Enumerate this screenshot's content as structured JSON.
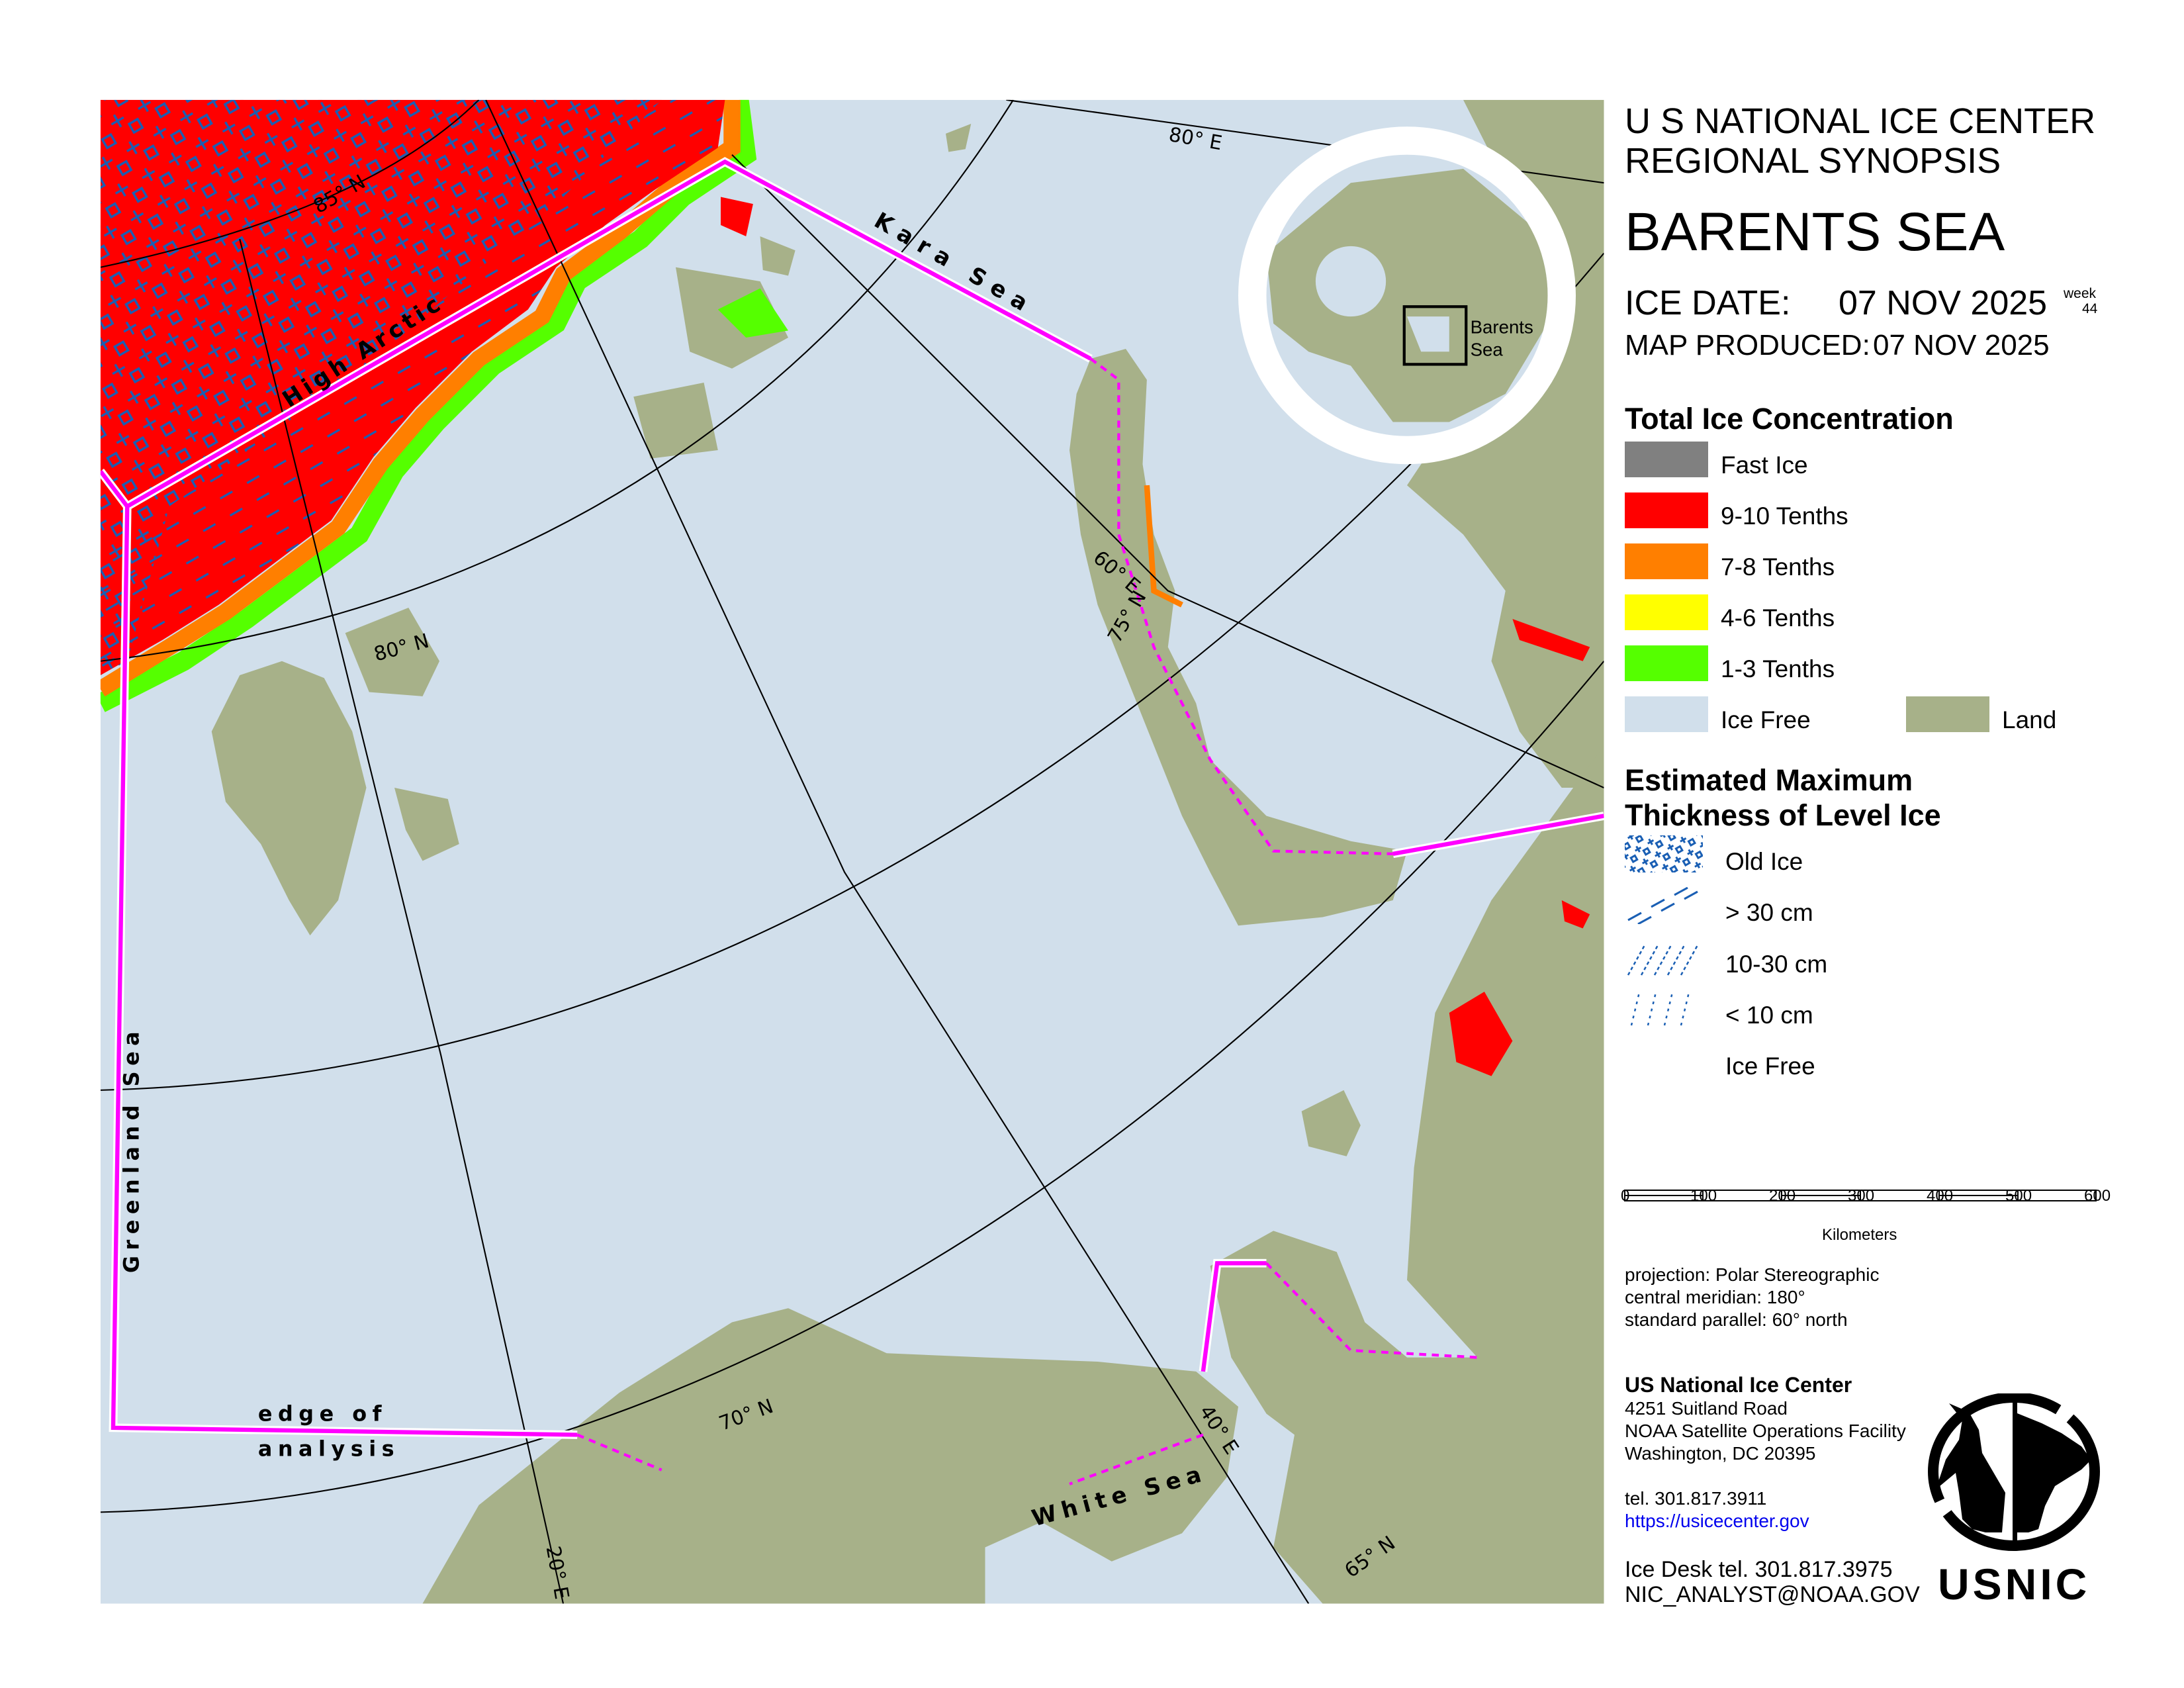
{
  "header": {
    "line1": "U S NATIONAL ICE CENTER",
    "line2": "REGIONAL SYNOPSIS",
    "region": "BARENTS SEA",
    "ice_date_label": "ICE DATE:",
    "ice_date": "07 NOV 2025",
    "week_label": "week",
    "week": "44",
    "produced_label": "MAP PRODUCED:",
    "produced": "07 NOV 2025"
  },
  "concentration_legend": {
    "title": "Total Ice Concentration",
    "items": [
      {
        "label": "Fast Ice",
        "color": "#808080"
      },
      {
        "label": "9-10 Tenths",
        "color": "#ff0000"
      },
      {
        "label": "7-8 Tenths",
        "color": "#ff7f00"
      },
      {
        "label": "4-6 Tenths",
        "color": "#ffff00"
      },
      {
        "label": "1-3 Tenths",
        "color": "#55ff00"
      },
      {
        "label": "Ice Free",
        "color": "#d1dfeb"
      }
    ],
    "land": {
      "label": "Land",
      "color": "#a7b189"
    }
  },
  "thickness_legend": {
    "title_line1": "Estimated Maximum",
    "title_line2": "Thickness of Level Ice",
    "items": [
      {
        "label": "Old Ice",
        "icon": "old-ice-hatch-icon"
      },
      {
        "label": "> 30 cm",
        "icon": "thick-ice-hatch-icon"
      },
      {
        "label": "10-30 cm",
        "icon": "medium-ice-hatch-icon"
      },
      {
        "label": "< 10 cm",
        "icon": "thin-ice-hatch-icon"
      },
      {
        "label": "Ice Free",
        "icon": "none"
      }
    ],
    "hatch_color": "#1a5fb4"
  },
  "scale_bar": {
    "ticks": [
      "0",
      "100",
      "200",
      "300",
      "400",
      "500",
      "600"
    ],
    "unit": "Kilometers"
  },
  "projection": {
    "line1": "projection: Polar Stereographic",
    "line2": "central meridian: 180°",
    "line3": "standard parallel:  60° north"
  },
  "contact": {
    "org": "US National Ice Center",
    "address1": "4251 Suitland Road",
    "address2": "NOAA Satellite Operations Facility",
    "address3": "Washington, DC  20395",
    "tel": "tel. 301.817.3911",
    "url": "https://usicecenter.gov",
    "ice_desk": "Ice Desk tel. 301.817.3975",
    "email": "NIC_ANALYST@NOAA.GOV"
  },
  "logo": {
    "text": "USNIC"
  },
  "map": {
    "colors": {
      "water": "#d1dfeb",
      "land": "#a7b189",
      "boundary": "#ff00ff"
    },
    "labels": {
      "high_arctic": "High Arctic",
      "kara_sea": "Kara Sea",
      "greenland_sea": "Greenland Sea",
      "edge_of": "edge of",
      "analysis": "analysis",
      "white_sea": "White Sea",
      "lat85": "85° N",
      "lat80": "80° N",
      "lat75": "75° N",
      "lat70": "70° N",
      "lon80": "80° E",
      "lon60": "60° E",
      "lon40": "40° E",
      "lon20": "20° E",
      "lon65": "65° N"
    },
    "inset": {
      "label1": "Barents",
      "label2": "Sea"
    }
  }
}
